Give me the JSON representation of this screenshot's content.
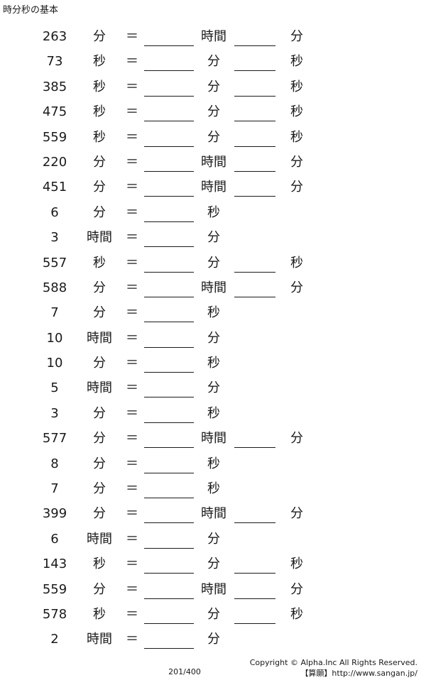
{
  "header": {
    "title": "時分秒の基本"
  },
  "rows": [
    {
      "n": "263",
      "u1": "分",
      "eq": "＝",
      "u2": "時間",
      "u3": "分"
    },
    {
      "n": "73",
      "u1": "秒",
      "eq": "＝",
      "u2": "分",
      "u3": "秒"
    },
    {
      "n": "385",
      "u1": "秒",
      "eq": "＝",
      "u2": "分",
      "u3": "秒"
    },
    {
      "n": "475",
      "u1": "秒",
      "eq": "＝",
      "u2": "分",
      "u3": "秒"
    },
    {
      "n": "559",
      "u1": "秒",
      "eq": "＝",
      "u2": "分",
      "u3": "秒"
    },
    {
      "n": "220",
      "u1": "分",
      "eq": "＝",
      "u2": "時間",
      "u3": "分"
    },
    {
      "n": "451",
      "u1": "分",
      "eq": "＝",
      "u2": "時間",
      "u3": "分"
    },
    {
      "n": "6",
      "u1": "分",
      "eq": "＝",
      "u2": "秒"
    },
    {
      "n": "3",
      "u1": "時間",
      "eq": "＝",
      "u2": "分"
    },
    {
      "n": "557",
      "u1": "秒",
      "eq": "＝",
      "u2": "分",
      "u3": "秒"
    },
    {
      "n": "588",
      "u1": "分",
      "eq": "＝",
      "u2": "時間",
      "u3": "分"
    },
    {
      "n": "7",
      "u1": "分",
      "eq": "＝",
      "u2": "秒"
    },
    {
      "n": "10",
      "u1": "時間",
      "eq": "＝",
      "u2": "分"
    },
    {
      "n": "10",
      "u1": "分",
      "eq": "＝",
      "u2": "秒"
    },
    {
      "n": "5",
      "u1": "時間",
      "eq": "＝",
      "u2": "分"
    },
    {
      "n": "3",
      "u1": "分",
      "eq": "＝",
      "u2": "秒"
    },
    {
      "n": "577",
      "u1": "分",
      "eq": "＝",
      "u2": "時間",
      "u3": "分"
    },
    {
      "n": "8",
      "u1": "分",
      "eq": "＝",
      "u2": "秒"
    },
    {
      "n": "7",
      "u1": "分",
      "eq": "＝",
      "u2": "秒"
    },
    {
      "n": "399",
      "u1": "分",
      "eq": "＝",
      "u2": "時間",
      "u3": "分"
    },
    {
      "n": "6",
      "u1": "時間",
      "eq": "＝",
      "u2": "分"
    },
    {
      "n": "143",
      "u1": "秒",
      "eq": "＝",
      "u2": "分",
      "u3": "秒"
    },
    {
      "n": "559",
      "u1": "分",
      "eq": "＝",
      "u2": "時間",
      "u3": "分"
    },
    {
      "n": "578",
      "u1": "秒",
      "eq": "＝",
      "u2": "分",
      "u3": "秒"
    },
    {
      "n": "2",
      "u1": "時間",
      "eq": "＝",
      "u2": "分"
    }
  ],
  "footer": {
    "page": "201/400",
    "copyright": "Copyright © Alpha.Inc All Rights Reserved.",
    "site": "【算願】http://www.sangan.jp/"
  }
}
